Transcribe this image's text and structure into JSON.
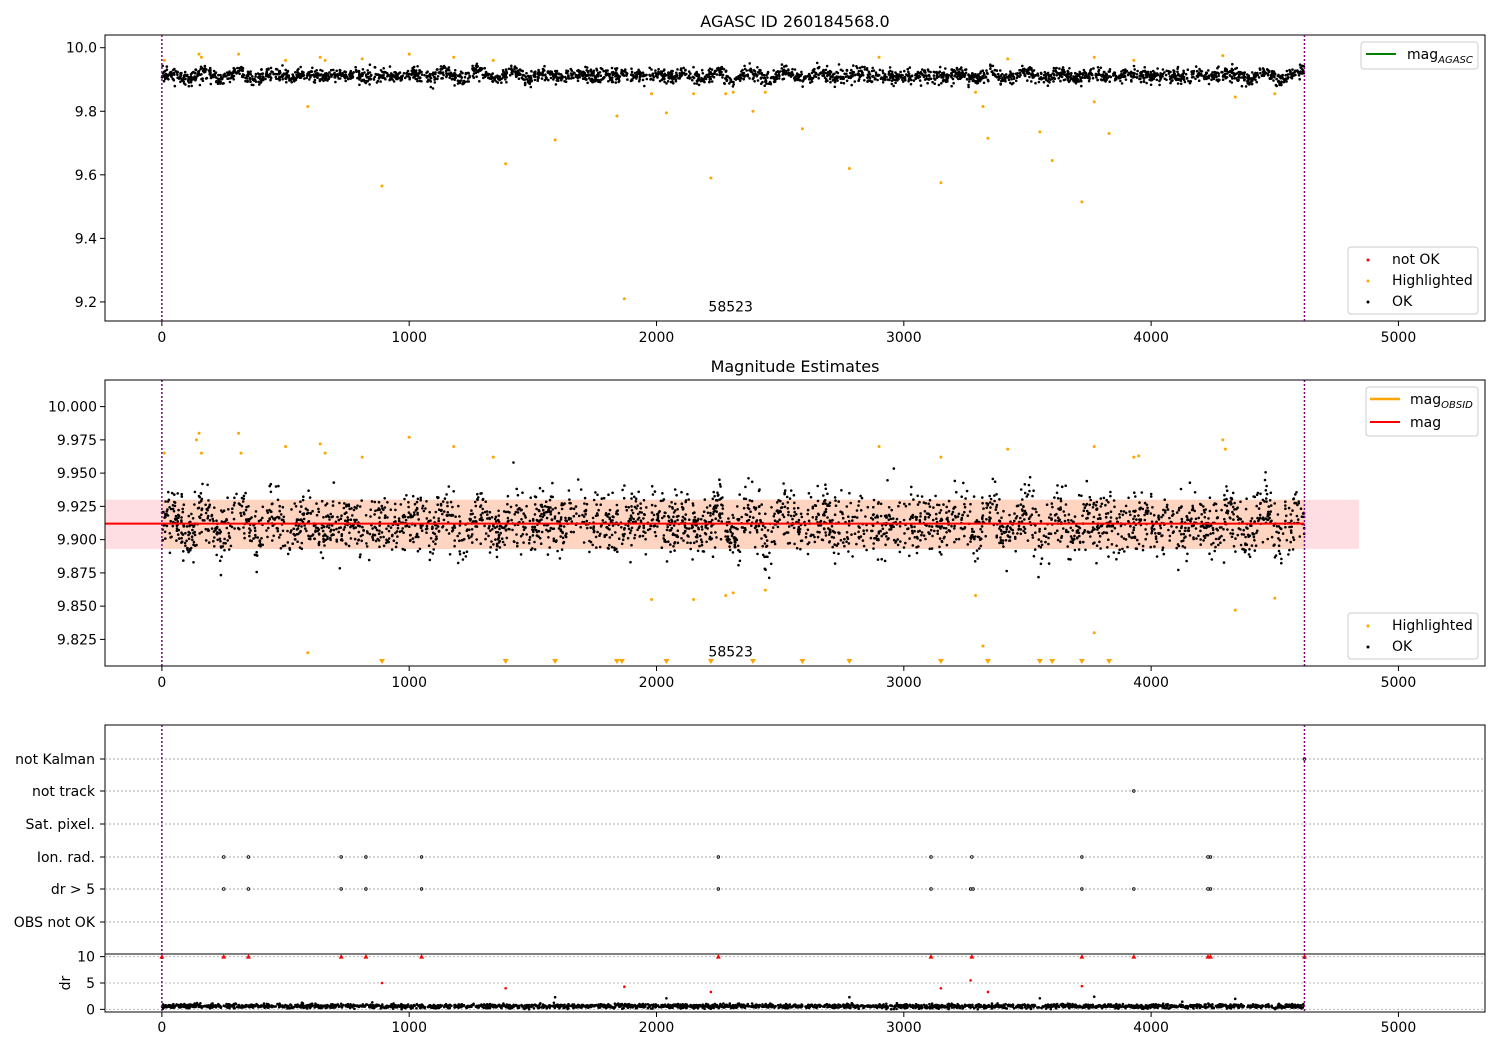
{
  "chart_data": [
    {
      "type": "scatter",
      "title": "AGASC ID 260184568.0",
      "xlim": [
        -230,
        5350
      ],
      "ylim": [
        9.14,
        10.04
      ],
      "xticks": [
        0,
        1000,
        2000,
        3000,
        4000,
        5000
      ],
      "yticks": [
        9.2,
        9.4,
        9.6,
        9.8,
        10.0
      ],
      "ytick_labels": [
        "9.2",
        "9.4",
        "9.6",
        "9.8",
        "10.0"
      ],
      "annotation": {
        "x": 2300,
        "y": 9.17,
        "text": "58523"
      },
      "vlines": [
        0,
        4620
      ],
      "ok_band": {
        "x_start": 0,
        "x_end": 4620,
        "center": 9.912,
        "amplitude": 0.02,
        "spread": 0.035
      },
      "legend_lines": {
        "position": "top-right",
        "entries": [
          {
            "label": "mag",
            "subscript": "AGASC",
            "color": "#008000"
          }
        ]
      },
      "legend_points": {
        "position": "bottom-right",
        "entries": [
          {
            "label": "not OK",
            "color": "#ff0000"
          },
          {
            "label": "Highlighted",
            "color": "#ffa500"
          },
          {
            "label": "OK",
            "color": "#000000"
          }
        ]
      },
      "highlighted": [
        [
          10,
          9.96
        ],
        [
          150,
          9.98
        ],
        [
          160,
          9.97
        ],
        [
          310,
          9.98
        ],
        [
          500,
          9.96
        ],
        [
          590,
          9.815
        ],
        [
          640,
          9.97
        ],
        [
          660,
          9.96
        ],
        [
          810,
          9.965
        ],
        [
          890,
          9.565
        ],
        [
          1000,
          9.98
        ],
        [
          1180,
          9.97
        ],
        [
          1340,
          9.96
        ],
        [
          1390,
          9.635
        ],
        [
          1590,
          9.71
        ],
        [
          1840,
          9.785
        ],
        [
          1870,
          9.21
        ],
        [
          1980,
          9.855
        ],
        [
          2040,
          9.795
        ],
        [
          2150,
          9.855
        ],
        [
          2220,
          9.59
        ],
        [
          2280,
          9.855
        ],
        [
          2310,
          9.86
        ],
        [
          2390,
          9.8
        ],
        [
          2440,
          9.86
        ],
        [
          2590,
          9.745
        ],
        [
          2780,
          9.62
        ],
        [
          2900,
          9.97
        ],
        [
          3150,
          9.575
        ],
        [
          3290,
          9.86
        ],
        [
          3320,
          9.815
        ],
        [
          3340,
          9.715
        ],
        [
          3420,
          9.965
        ],
        [
          3550,
          9.735
        ],
        [
          3600,
          9.645
        ],
        [
          3720,
          9.515
        ],
        [
          3770,
          9.97
        ],
        [
          3770,
          9.83
        ],
        [
          3830,
          9.73
        ],
        [
          3930,
          9.96
        ],
        [
          4290,
          9.975
        ],
        [
          4340,
          9.845
        ],
        [
          4500,
          9.855
        ]
      ]
    },
    {
      "type": "scatter",
      "title": "Magnitude Estimates",
      "xlim": [
        -230,
        5350
      ],
      "ylim": [
        9.805,
        10.02
      ],
      "xticks": [
        0,
        1000,
        2000,
        3000,
        4000,
        5000
      ],
      "yticks": [
        9.825,
        9.85,
        9.875,
        9.9,
        9.925,
        9.95,
        9.975,
        10.0
      ],
      "ytick_labels": [
        "9.825",
        "9.850",
        "9.875",
        "9.900",
        "9.925",
        "9.950",
        "9.975",
        "10.000"
      ],
      "annotation": {
        "x": 2300,
        "y": 9.812,
        "text": "58523"
      },
      "vlines": [
        0,
        4620
      ],
      "mean_line": {
        "y": 9.912,
        "x_start": -230,
        "x_end": 4620,
        "color": "#ff0000"
      },
      "band_pink": {
        "x_start": -230,
        "x_end": 4840,
        "y_low": 9.893,
        "y_high": 9.93
      },
      "band_obsid": {
        "x_start": 0,
        "x_end": 4620,
        "y_low": 9.893,
        "y_high": 9.93
      },
      "ok_band": {
        "x_start": 0,
        "x_end": 4620,
        "center": 9.912,
        "amplitude": 0.018,
        "spread": 0.035
      },
      "legend_lines": {
        "position": "top-right",
        "entries": [
          {
            "label": "mag",
            "subscript": "OBSID",
            "color": "#ffa500"
          },
          {
            "label": "mag",
            "subscript": "",
            "color": "#ff0000"
          }
        ]
      },
      "legend_points": {
        "position": "bottom-right",
        "entries": [
          {
            "label": "Highlighted",
            "color": "#ffa500"
          },
          {
            "label": "OK",
            "color": "#000000"
          }
        ]
      },
      "highlighted": [
        [
          10,
          9.965
        ],
        [
          140,
          9.975
        ],
        [
          150,
          9.98
        ],
        [
          160,
          9.965
        ],
        [
          310,
          9.98
        ],
        [
          320,
          9.965
        ],
        [
          500,
          9.97
        ],
        [
          590,
          9.815
        ],
        [
          640,
          9.972
        ],
        [
          660,
          9.965
        ],
        [
          810,
          9.962
        ],
        [
          1000,
          9.977
        ],
        [
          1180,
          9.97
        ],
        [
          1340,
          9.962
        ],
        [
          1980,
          9.855
        ],
        [
          2150,
          9.855
        ],
        [
          2280,
          9.858
        ],
        [
          2310,
          9.86
        ],
        [
          2440,
          9.862
        ],
        [
          2900,
          9.97
        ],
        [
          3150,
          9.962
        ],
        [
          3290,
          9.858
        ],
        [
          3320,
          9.82
        ],
        [
          3420,
          9.968
        ],
        [
          3770,
          9.97
        ],
        [
          3770,
          9.83
        ],
        [
          3930,
          9.962
        ],
        [
          3950,
          9.963
        ],
        [
          4290,
          9.975
        ],
        [
          4300,
          9.968
        ],
        [
          4340,
          9.847
        ],
        [
          4500,
          9.856
        ]
      ],
      "below_range_markers": [
        890,
        1390,
        1590,
        1840,
        1860,
        2040,
        2220,
        2390,
        2590,
        2780,
        3150,
        3340,
        3550,
        3600,
        3720,
        3830
      ]
    },
    {
      "type": "scatter",
      "title": "",
      "xlim": [
        -230,
        5350
      ],
      "xticks": [
        0,
        1000,
        2000,
        3000,
        4000,
        5000
      ],
      "vlines": [
        0,
        4620
      ],
      "flag_rows": [
        "not Kalman",
        "not track",
        "Sat. pixel.",
        "Ion. rad.",
        "dr > 5",
        "OBS not OK"
      ],
      "flag_events": {
        "not Kalman": [
          4620
        ],
        "not track": [
          3930
        ],
        "Sat. pixel.": [],
        "Ion. rad.": [
          250,
          350,
          725,
          825,
          1050,
          2250,
          3110,
          3275,
          3720,
          4230,
          4240
        ],
        "dr > 5": [
          250,
          350,
          725,
          825,
          1050,
          2250,
          3110,
          3270,
          3280,
          3720,
          3930,
          4230,
          4240
        ],
        "OBS not OK": []
      },
      "dr_panel": {
        "ylabel": "dr",
        "ylim": [
          -0.5,
          10.5
        ],
        "yticks": [
          0,
          5,
          10
        ],
        "ytick_labels": [
          "0",
          "5",
          "10"
        ],
        "ok_band": {
          "x_start": 0,
          "x_end": 4620,
          "center": 0.6,
          "spread": 0.6
        },
        "red_points": [
          [
            890,
            5
          ],
          [
            1390,
            4
          ],
          [
            1870,
            4.3
          ],
          [
            2220,
            3.3
          ],
          [
            3150,
            4
          ],
          [
            3270,
            5.5
          ],
          [
            3340,
            3.3
          ],
          [
            3720,
            4.4
          ]
        ],
        "red_capped": [
          0,
          250,
          350,
          725,
          825,
          1050,
          2250,
          3110,
          3275,
          3720,
          3930,
          4230,
          4240,
          4620
        ],
        "black_outliers": [
          [
            1590,
            2.3
          ],
          [
            2040,
            2.1
          ],
          [
            2780,
            2.3
          ],
          [
            3550,
            2.1
          ],
          [
            3770,
            2.4
          ],
          [
            4340,
            2.0
          ]
        ]
      }
    }
  ]
}
